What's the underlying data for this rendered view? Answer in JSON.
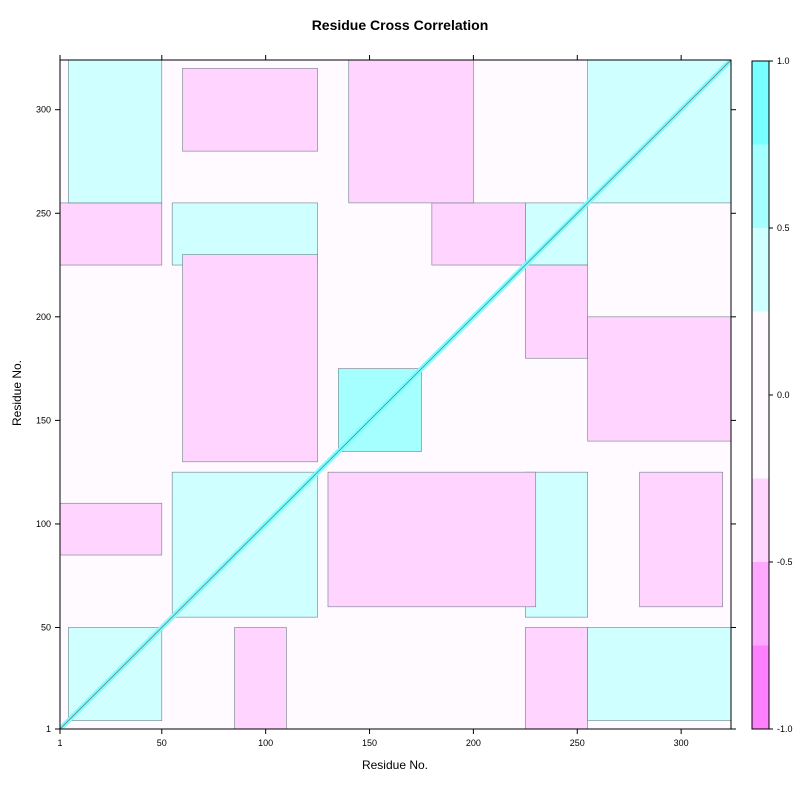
{
  "chart_data": {
    "type": "heatmap",
    "title": "Residue Cross Correlation",
    "xlabel": "Residue No.",
    "ylabel": "Residue No.",
    "xlim": [
      1,
      324
    ],
    "ylim": [
      1,
      324
    ],
    "x_ticks": [
      1,
      50,
      100,
      150,
      200,
      250,
      300
    ],
    "x_tick_labels": [
      "1",
      "50",
      "100",
      "150",
      "200",
      "250",
      "300"
    ],
    "y_ticks": [
      1,
      50,
      100,
      150,
      200,
      250,
      300
    ],
    "y_tick_labels": [
      "1",
      "50",
      "100",
      "150",
      "200",
      "250",
      "300"
    ],
    "colorbar": {
      "range": [
        -1.0,
        1.0
      ],
      "ticks": [
        -1.0,
        -0.5,
        0.0,
        0.5,
        1.0
      ],
      "tick_labels": [
        "-1.0",
        "-0.5",
        "0.0",
        "0.5",
        "1.0"
      ],
      "levels": [
        {
          "from": -1.0,
          "to": -0.75,
          "color": "#ff80ff"
        },
        {
          "from": -0.75,
          "to": -0.5,
          "color": "#ffa8ff"
        },
        {
          "from": -0.5,
          "to": -0.25,
          "color": "#ffd4ff"
        },
        {
          "from": -0.25,
          "to": 0.25,
          "color": "#fffaff"
        },
        {
          "from": 0.25,
          "to": 0.5,
          "color": "#cfffff"
        },
        {
          "from": 0.5,
          "to": 0.75,
          "color": "#a6ffff"
        },
        {
          "from": 0.75,
          "to": 1.0,
          "color": "#78ffff"
        }
      ]
    },
    "regions": [
      {
        "x": [
          1,
          324
        ],
        "y": [
          1,
          324
        ],
        "value": 0.0
      },
      {
        "x": [
          5,
          50
        ],
        "y": [
          5,
          50
        ],
        "value": 0.35
      },
      {
        "x": [
          55,
          125
        ],
        "y": [
          55,
          125
        ],
        "value": 0.35
      },
      {
        "x": [
          135,
          175
        ],
        "y": [
          135,
          175
        ],
        "value": 0.6
      },
      {
        "x": [
          225,
          255
        ],
        "y": [
          225,
          255
        ],
        "value": 0.45
      },
      {
        "x": [
          255,
          324
        ],
        "y": [
          255,
          324
        ],
        "value": 0.3
      },
      {
        "x": [
          1,
          50
        ],
        "y": [
          225,
          255
        ],
        "value": -0.45
      },
      {
        "x": [
          225,
          255
        ],
        "y": [
          1,
          50
        ],
        "value": -0.45
      },
      {
        "x": [
          1,
          50
        ],
        "y": [
          85,
          110
        ],
        "value": -0.4
      },
      {
        "x": [
          85,
          110
        ],
        "y": [
          1,
          50
        ],
        "value": -0.4
      },
      {
        "x": [
          55,
          125
        ],
        "y": [
          225,
          255
        ],
        "value": 0.3
      },
      {
        "x": [
          225,
          255
        ],
        "y": [
          55,
          125
        ],
        "value": 0.3
      },
      {
        "x": [
          60,
          125
        ],
        "y": [
          280,
          320
        ],
        "value": -0.35
      },
      {
        "x": [
          280,
          320
        ],
        "y": [
          60,
          125
        ],
        "value": -0.35
      },
      {
        "x": [
          130,
          230
        ],
        "y": [
          60,
          125
        ],
        "value": -0.3
      },
      {
        "x": [
          60,
          125
        ],
        "y": [
          130,
          230
        ],
        "value": -0.3
      },
      {
        "x": [
          180,
          225
        ],
        "y": [
          225,
          255
        ],
        "value": -0.3
      },
      {
        "x": [
          225,
          255
        ],
        "y": [
          180,
          225
        ],
        "value": -0.3
      },
      {
        "x": [
          255,
          324
        ],
        "y": [
          140,
          200
        ],
        "value": -0.35
      },
      {
        "x": [
          140,
          200
        ],
        "y": [
          255,
          324
        ],
        "value": -0.35
      },
      {
        "x": [
          255,
          324
        ],
        "y": [
          5,
          50
        ],
        "value": 0.3
      },
      {
        "x": [
          5,
          50
        ],
        "y": [
          255,
          324
        ],
        "value": 0.3
      }
    ]
  }
}
